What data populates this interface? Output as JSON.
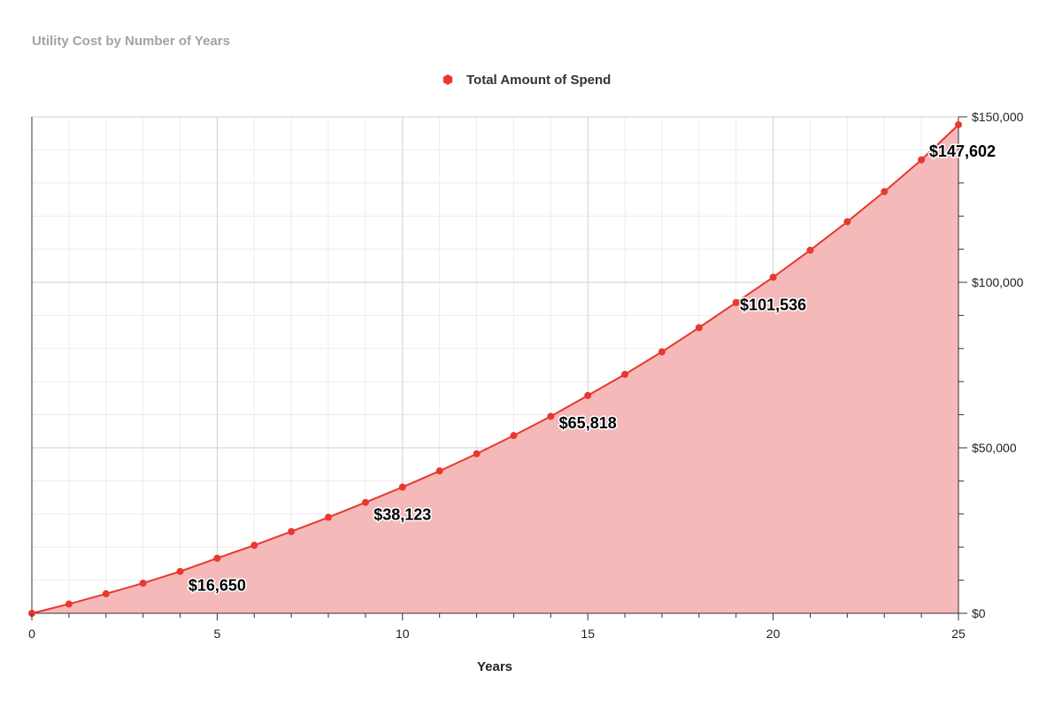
{
  "chart_data": {
    "type": "area",
    "title": "Utility Cost by Number of Years",
    "xlabel": "Years",
    "ylabel": "",
    "xlim": [
      0,
      25
    ],
    "ylim": [
      0,
      150000
    ],
    "x_ticks": [
      "0",
      "5",
      "10",
      "15",
      "20",
      "25"
    ],
    "y_ticks": [
      "$0",
      "$50,000",
      "$100,000",
      "$150,000"
    ],
    "grid": true,
    "legend_position": "top-center",
    "series": [
      {
        "name": "Total Amount of Spend",
        "color": "#e8382f",
        "fill_color": "#f4b5b5",
        "x": [
          0,
          1,
          2,
          3,
          4,
          5,
          6,
          7,
          8,
          9,
          10,
          11,
          12,
          13,
          14,
          15,
          16,
          17,
          18,
          19,
          20,
          21,
          22,
          23,
          24,
          25
        ],
        "values": [
          0,
          2800,
          5900,
          9100,
          12650,
          16650,
          20550,
          24700,
          29000,
          33500,
          38123,
          43000,
          48200,
          53700,
          59500,
          65818,
          72200,
          79000,
          86300,
          93900,
          101536,
          109700,
          118300,
          127400,
          137000,
          147602
        ]
      }
    ],
    "data_labels": [
      {
        "x": 5,
        "text": "$16,650"
      },
      {
        "x": 10,
        "text": "$38,123"
      },
      {
        "x": 15,
        "text": "$65,818"
      },
      {
        "x": 20,
        "text": "$101,536"
      },
      {
        "x": 25,
        "text": "$147,602"
      }
    ]
  }
}
